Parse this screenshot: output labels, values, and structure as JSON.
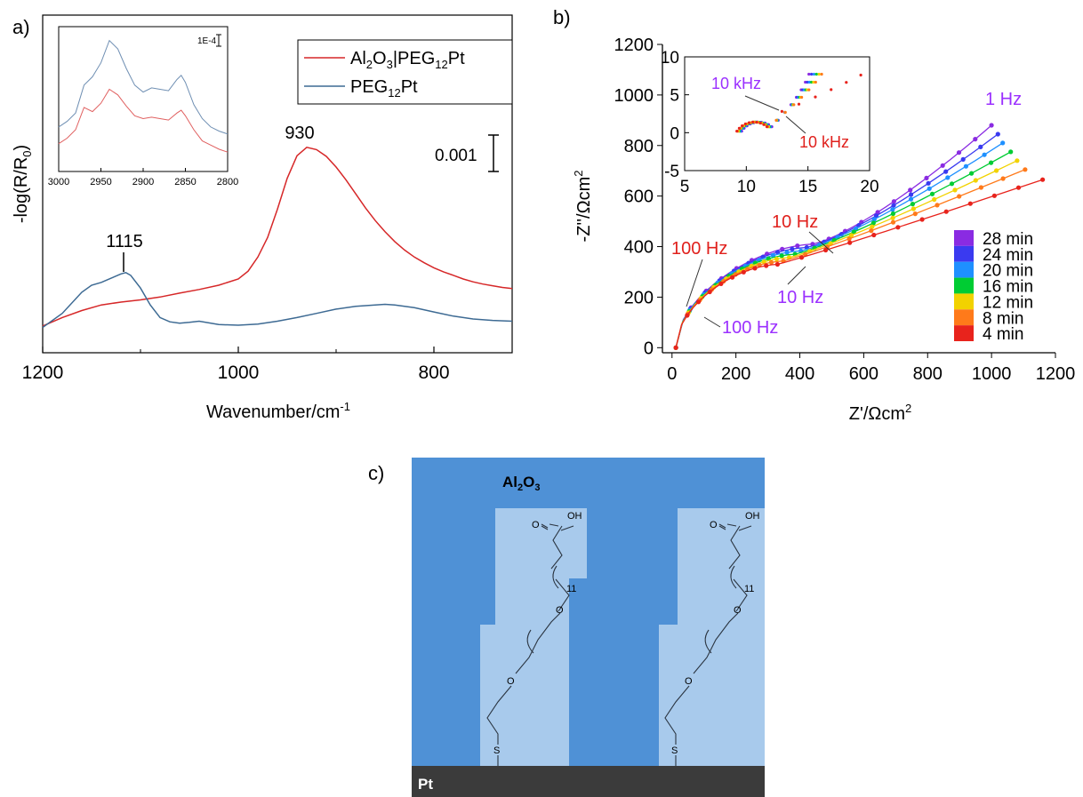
{
  "panels": {
    "a": {
      "label": "a)"
    },
    "b": {
      "label": "b)"
    },
    "c": {
      "label": "c)"
    }
  },
  "chart_data": [
    {
      "id": "panel-a",
      "type": "line",
      "xlabel": "Wavenumber/cm-1",
      "xlabel_main": "Wavenumber/cm",
      "xlabel_sup": "-1",
      "ylabel": "-log(R/R0)",
      "xlim": [
        1200,
        720
      ],
      "x_reversed": true,
      "ylim": [
        0,
        0.012
      ],
      "y_ticks_shown": false,
      "x_ticks": [
        "1200",
        "1000",
        "800"
      ],
      "scale_bar": {
        "label": "0.001",
        "value": 0.001
      },
      "annotations": [
        {
          "text": "930",
          "x": 930
        },
        {
          "text": "1115",
          "x": 1115
        }
      ],
      "legend": {
        "position": "top-right"
      },
      "series": [
        {
          "name": "Al2O3|PEG12Pt",
          "color": "#d62728",
          "x": [
            1200,
            1180,
            1160,
            1140,
            1120,
            1100,
            1080,
            1060,
            1040,
            1020,
            1000,
            990,
            980,
            970,
            960,
            950,
            940,
            930,
            920,
            910,
            900,
            890,
            880,
            870,
            860,
            850,
            840,
            830,
            820,
            810,
            800,
            790,
            780,
            770,
            760,
            750,
            740,
            730,
            720
          ],
          "y": [
            0.00095,
            0.00125,
            0.0015,
            0.0017,
            0.0018,
            0.00188,
            0.00198,
            0.00212,
            0.00225,
            0.0024,
            0.00262,
            0.0029,
            0.0034,
            0.0041,
            0.0051,
            0.0062,
            0.007,
            0.0073,
            0.00722,
            0.00698,
            0.0066,
            0.00615,
            0.00565,
            0.00515,
            0.0047,
            0.0043,
            0.00395,
            0.00365,
            0.0034,
            0.0032,
            0.00302,
            0.00287,
            0.00275,
            0.00262,
            0.00252,
            0.00244,
            0.00238,
            0.00232,
            0.00228
          ]
        },
        {
          "name": "PEG12Pt",
          "color": "#3d6a93",
          "x": [
            1200,
            1180,
            1160,
            1150,
            1140,
            1130,
            1120,
            1115,
            1110,
            1100,
            1090,
            1080,
            1070,
            1060,
            1050,
            1040,
            1020,
            1000,
            980,
            960,
            940,
            920,
            900,
            880,
            860,
            850,
            840,
            820,
            800,
            780,
            760,
            740,
            720
          ],
          "y": [
            0.0009,
            0.0014,
            0.00215,
            0.0024,
            0.0025,
            0.00265,
            0.0028,
            0.00285,
            0.00275,
            0.0023,
            0.0017,
            0.00125,
            0.0011,
            0.00105,
            0.00108,
            0.00112,
            0.001,
            0.00098,
            0.00102,
            0.00112,
            0.00125,
            0.0014,
            0.00155,
            0.00165,
            0.0017,
            0.00172,
            0.0017,
            0.0016,
            0.00145,
            0.0013,
            0.0012,
            0.00115,
            0.00112
          ]
        }
      ],
      "inset": {
        "type": "line",
        "xlim": [
          3000,
          2800
        ],
        "x_ticks": [
          "3000",
          "2950",
          "2900",
          "2850",
          "2800"
        ],
        "scale_bar": {
          "label": "1E-4"
        },
        "series": [
          {
            "name": "PEG12Pt",
            "color": "#6f8fb3",
            "x": [
              3000,
              2990,
              2980,
              2970,
              2960,
              2950,
              2940,
              2930,
              2920,
              2910,
              2900,
              2890,
              2880,
              2870,
              2860,
              2855,
              2850,
              2840,
              2830,
              2820,
              2810,
              2800
            ],
            "y": [
              0.3,
              0.34,
              0.4,
              0.6,
              0.66,
              0.76,
              0.92,
              0.86,
              0.72,
              0.6,
              0.55,
              0.58,
              0.57,
              0.56,
              0.64,
              0.67,
              0.62,
              0.46,
              0.36,
              0.3,
              0.27,
              0.25
            ]
          },
          {
            "name": "Al2O3|PEG12Pt",
            "color": "#e06060",
            "x": [
              3000,
              2990,
              2980,
              2970,
              2960,
              2950,
              2940,
              2930,
              2920,
              2910,
              2900,
              2890,
              2880,
              2870,
              2860,
              2855,
              2850,
              2840,
              2830,
              2820,
              2810,
              2800
            ],
            "y": [
              0.18,
              0.22,
              0.28,
              0.44,
              0.41,
              0.47,
              0.57,
              0.53,
              0.45,
              0.38,
              0.36,
              0.37,
              0.36,
              0.35,
              0.4,
              0.42,
              0.38,
              0.28,
              0.2,
              0.17,
              0.14,
              0.12
            ]
          }
        ]
      }
    },
    {
      "id": "panel-b",
      "type": "scatter",
      "xlabel": "Z'/Ωcm2",
      "xlabel_main": "Z'/Ωcm",
      "xlabel_sup": "2",
      "ylabel": "-Z''/Ωcm2",
      "ylabel_main": "-Z''/Ωcm",
      "ylabel_sup": "2",
      "xlim": [
        -30,
        1200
      ],
      "ylim": [
        -20,
        1200
      ],
      "x_ticks": [
        0,
        200,
        400,
        600,
        800,
        1000,
        1200
      ],
      "y_ticks": [
        0,
        200,
        400,
        600,
        800,
        1000,
        1200
      ],
      "legend": {
        "position": "bottom-right"
      },
      "annotations": [
        {
          "text": "1 Hz",
          "color": "#9b30ff"
        },
        {
          "text": "10 Hz",
          "color": "#e0201c"
        },
        {
          "text": "10 Hz",
          "color": "#9b30ff"
        },
        {
          "text": "100 Hz",
          "color": "#e0201c"
        },
        {
          "text": "100 Hz",
          "color": "#9b30ff"
        }
      ],
      "series": [
        {
          "name": "28 min",
          "color": "#8a2be2",
          "end": [
            1000,
            880
          ]
        },
        {
          "name": "24 min",
          "color": "#3a3af0",
          "end": [
            1020,
            845
          ]
        },
        {
          "name": "20 min",
          "color": "#1e90ff",
          "end": [
            1035,
            810
          ]
        },
        {
          "name": "16 min",
          "color": "#00cc33",
          "end": [
            1060,
            775
          ]
        },
        {
          "name": "12 min",
          "color": "#f2d200",
          "end": [
            1080,
            740
          ]
        },
        {
          "name": "8 min",
          "color": "#ff7a1a",
          "end": [
            1105,
            705
          ]
        },
        {
          "name": "4 min",
          "color": "#e8231c",
          "end": [
            1160,
            665
          ]
        }
      ],
      "inset": {
        "type": "scatter",
        "xlim": [
          5,
          20
        ],
        "ylim": [
          -5,
          10
        ],
        "x_ticks": [
          5,
          10,
          15,
          20
        ],
        "y_ticks": [
          -5,
          0,
          5,
          10
        ],
        "annotations": [
          {
            "text": "10 kHz",
            "color": "#9b30ff"
          },
          {
            "text": "10 kHz",
            "color": "#e0201c"
          }
        ]
      }
    }
  ],
  "diagram_c": {
    "oxide_label": "Al",
    "oxide_sub1": "2",
    "oxide_mid": "O",
    "oxide_sub2": "3",
    "substrate_label": "Pt",
    "molecule": {
      "acid_group": "OH",
      "carbonyl_o": "O",
      "ether_o_upper": "O",
      "ether_o_lower": "O",
      "repeat_count": "11",
      "thiol": "S"
    }
  }
}
